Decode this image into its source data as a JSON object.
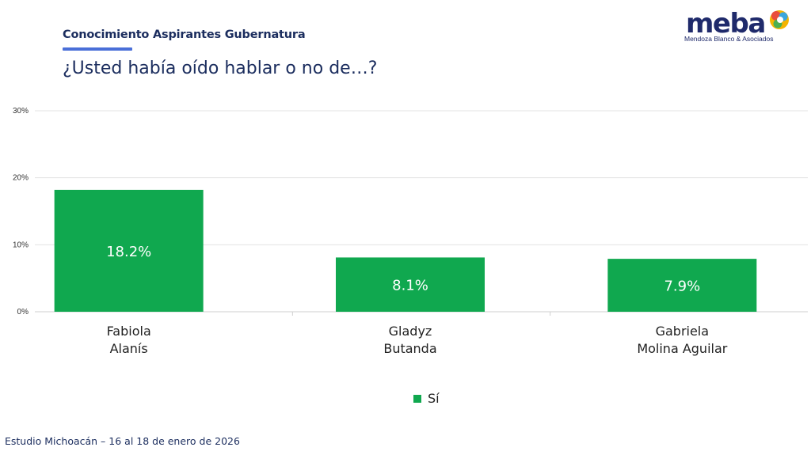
{
  "header": {
    "title": "Conocimiento Aspirantes Gubernatura",
    "question": "¿Usted había oído hablar o no de…?"
  },
  "logo": {
    "word": "meba",
    "subtitle": "Mendoza Blanco & Asociados",
    "icon": "colorful-circles-icon"
  },
  "chart_data": {
    "type": "bar",
    "categories": [
      [
        "Fabiola",
        "Alanís"
      ],
      [
        "Gladyz",
        "Butanda"
      ],
      [
        "Gabriela",
        "Molina Aguilar"
      ]
    ],
    "series": [
      {
        "name": "Sí",
        "values": [
          18.2,
          8.1,
          7.9
        ],
        "labels": [
          "18.2%",
          "8.1%",
          "7.9%"
        ],
        "color": "#10a84f"
      }
    ],
    "ylim": [
      0,
      30
    ],
    "yticks": [
      "0%",
      "10%",
      "20%",
      "30%"
    ],
    "ytick_values": [
      0,
      10,
      20,
      30
    ],
    "grid": true,
    "legend": "bottom"
  },
  "footer": {
    "text": "Estudio Michoacán – 16 al 18 de enero de 2026"
  }
}
